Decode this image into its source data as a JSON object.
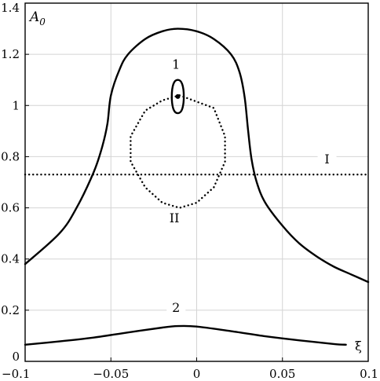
{
  "chart_data": {
    "type": "line",
    "title": "",
    "xlabel": "ξ",
    "ylabel": {
      "main": "A",
      "sub": "0"
    },
    "xlim": [
      -0.1,
      0.1
    ],
    "ylim": [
      0,
      1.4
    ],
    "x_ticks": [
      {
        "value": -0.1,
        "label": "−0.1"
      },
      {
        "value": -0.05,
        "label": "−0.05"
      },
      {
        "value": 0,
        "label": "0"
      },
      {
        "value": 0.05,
        "label": "0.05"
      },
      {
        "value": 0.1,
        "label": "0.1"
      }
    ],
    "y_ticks": [
      {
        "value": 0,
        "label": "0"
      },
      {
        "value": 0.2,
        "label": "0.2"
      },
      {
        "value": 0.4,
        "label": "0.4"
      },
      {
        "value": 0.6,
        "label": "0.6"
      },
      {
        "value": 0.8,
        "label": "0.8"
      },
      {
        "value": 1,
        "label": "1"
      },
      {
        "value": 1.2,
        "label": "1.2"
      },
      {
        "value": 1.4,
        "label": "1.4"
      }
    ],
    "grid": true,
    "series": [
      {
        "style": "solid",
        "x": [
          -0.1,
          -0.08,
          -0.07,
          -0.06,
          -0.055,
          -0.052,
          -0.05,
          -0.045,
          -0.04,
          -0.03,
          -0.02,
          -0.011,
          0,
          0.01,
          0.02,
          0.025,
          0.028,
          0.03,
          0.032,
          0.035,
          0.04,
          0.05,
          0.06,
          0.07,
          0.08,
          0.09,
          0.1
        ],
        "y": [
          0.38,
          0.5,
          0.6,
          0.74,
          0.84,
          0.93,
          1.04,
          1.14,
          1.2,
          1.26,
          1.29,
          1.3,
          1.29,
          1.26,
          1.2,
          1.13,
          1.03,
          0.9,
          0.79,
          0.7,
          0.62,
          0.53,
          0.46,
          0.41,
          0.37,
          0.34,
          0.31
        ]
      },
      {
        "style": "solid",
        "x": [
          -0.1,
          -0.08,
          -0.06,
          -0.04,
          -0.02,
          -0.011,
          0,
          0.02,
          0.04,
          0.06,
          0.08,
          0.087
        ],
        "y": [
          0.065,
          0.078,
          0.093,
          0.113,
          0.132,
          0.138,
          0.136,
          0.118,
          0.098,
          0.082,
          0.068,
          0.065
        ]
      },
      {
        "style": "solid",
        "closed": true,
        "x": [
          -0.011,
          -0.0085,
          -0.0075,
          -0.0085,
          -0.011,
          -0.0135,
          -0.0145,
          -0.0135,
          -0.011
        ],
        "y": [
          1.1,
          1.085,
          1.035,
          0.985,
          0.97,
          0.985,
          1.035,
          1.085,
          1.1
        ]
      },
      {
        "style": "dotted",
        "x": [
          -0.1,
          0.1
        ],
        "y": [
          0.73,
          0.73
        ]
      },
      {
        "style": "dotted",
        "closed": true,
        "x": [
          -0.01,
          0.01,
          0.0165,
          0.0165,
          0.01,
          0,
          -0.01,
          -0.02,
          -0.03,
          -0.0385,
          -0.0385,
          -0.03,
          -0.02,
          -0.01
        ],
        "y": [
          1.04,
          0.99,
          0.88,
          0.78,
          0.68,
          0.62,
          0.6,
          0.62,
          0.68,
          0.78,
          0.88,
          0.98,
          1.02,
          1.04
        ]
      }
    ],
    "points": [
      {
        "x": -0.011,
        "y": 1.035
      }
    ],
    "annotations": [
      {
        "text": "1",
        "x": -0.012,
        "y": 1.15
      },
      {
        "text": "2",
        "x": -0.012,
        "y": 0.2
      },
      {
        "text": "I",
        "x": 0.076,
        "y": 0.78
      },
      {
        "text": "II",
        "x": -0.013,
        "y": 0.55
      }
    ]
  }
}
